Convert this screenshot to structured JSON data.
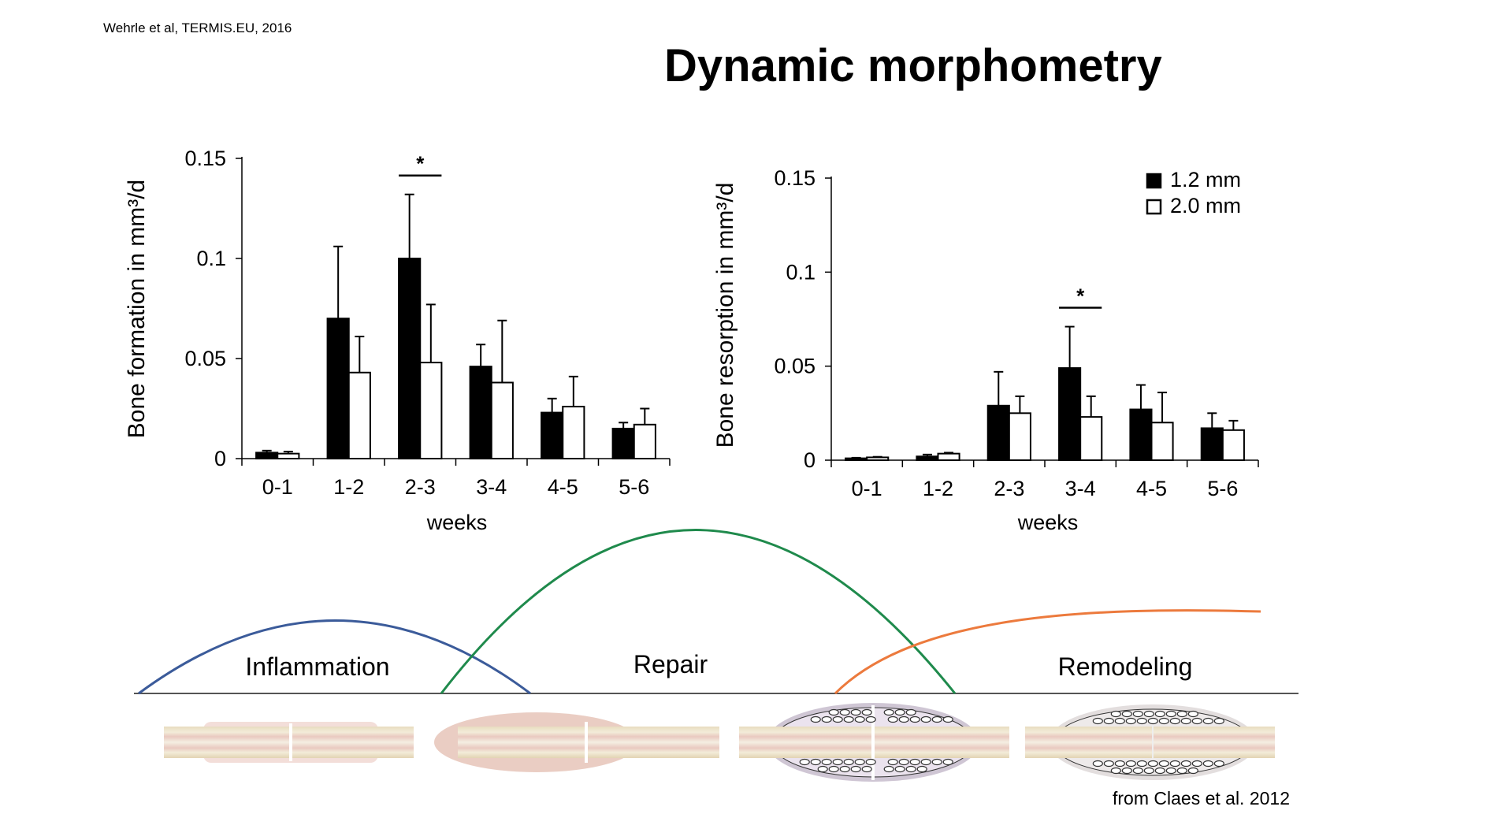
{
  "header": {
    "citation": "Wehrle et al, TERMIS.EU, 2016",
    "title": "Dynamic morphometry",
    "source_note": "from Claes et al. 2012"
  },
  "colors": {
    "series_1": "#000000",
    "series_2": "#ffffff",
    "inflammation_curve": "#3b5b9a",
    "repair_curve": "#1f8a4c",
    "remodeling_curve": "#ec7a3d"
  },
  "chart_data": [
    {
      "type": "bar",
      "xlabel": "weeks",
      "ylabel": "Bone formation in mm³/d",
      "ylim": [
        0,
        0.15
      ],
      "yticks": [
        "0",
        "0.05",
        "0.1",
        "0.15"
      ],
      "yticks_values": [
        0,
        0.05,
        0.1,
        0.15
      ],
      "categories": [
        "0-1",
        "1-2",
        "2-3",
        "3-4",
        "4-5",
        "5-6"
      ],
      "series": [
        {
          "values": [
            0.003,
            0.07,
            0.1,
            0.046,
            0.023,
            0.015
          ],
          "error": [
            0.001,
            0.036,
            0.032,
            0.011,
            0.007,
            0.003
          ]
        },
        {
          "values": [
            0.0025,
            0.043,
            0.048,
            0.038,
            0.026,
            0.017
          ],
          "error": [
            0.001,
            0.018,
            0.029,
            0.031,
            0.015,
            0.008
          ]
        }
      ],
      "annotations": [
        {
          "text": "*",
          "category": "2-3"
        }
      ]
    },
    {
      "type": "bar",
      "xlabel": "weeks",
      "ylabel": "Bone resorption in mm³/d",
      "ylim": [
        0,
        0.15
      ],
      "yticks": [
        "0",
        "0.05",
        "0.1",
        "0.15"
      ],
      "yticks_values": [
        0,
        0.05,
        0.1,
        0.15
      ],
      "categories": [
        "0-1",
        "1-2",
        "2-3",
        "3-4",
        "4-5",
        "5-6"
      ],
      "legend": "top-right",
      "series": [
        {
          "name": "1.2 mm",
          "values": [
            0.001,
            0.002,
            0.029,
            0.049,
            0.027,
            0.017
          ],
          "error": [
            0.0003,
            0.001,
            0.018,
            0.022,
            0.013,
            0.008
          ]
        },
        {
          "name": "2.0 mm",
          "values": [
            0.0015,
            0.0035,
            0.025,
            0.023,
            0.02,
            0.016
          ],
          "error": [
            0.0003,
            0.0005,
            0.009,
            0.011,
            0.016,
            0.005
          ]
        }
      ],
      "annotations": [
        {
          "text": "*",
          "category": "3-4"
        }
      ]
    }
  ],
  "healing": {
    "phases": [
      "Inflammation",
      "Repair",
      "Remodeling"
    ]
  }
}
